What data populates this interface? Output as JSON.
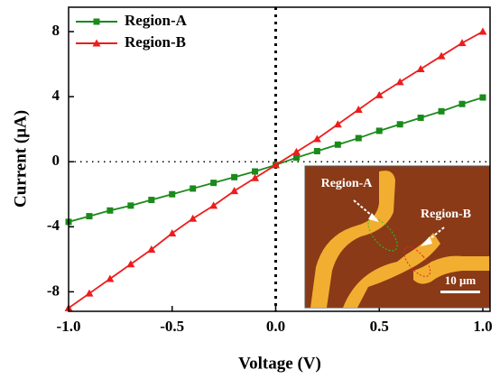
{
  "chart_data": {
    "type": "line",
    "x_label": "Voltage (V)",
    "y_label": "Current (μA)",
    "x": [
      -1.0,
      -0.9,
      -0.8,
      -0.7,
      -0.6,
      -0.5,
      -0.4,
      -0.3,
      -0.2,
      -0.1,
      0.0,
      0.1,
      0.2,
      0.3,
      0.4,
      0.5,
      0.6,
      0.7,
      0.8,
      0.9,
      1.0
    ],
    "series": [
      {
        "name": "Region-A",
        "color": "#1a8a1a",
        "marker": "square",
        "values": [
          -3.7,
          -3.35,
          -3.0,
          -2.7,
          -2.35,
          -2.0,
          -1.65,
          -1.3,
          -0.95,
          -0.6,
          -0.2,
          0.25,
          0.65,
          1.05,
          1.45,
          1.9,
          2.3,
          2.7,
          3.1,
          3.55,
          3.95
        ]
      },
      {
        "name": "Region-B",
        "color": "#ee1c1c",
        "marker": "triangle",
        "values": [
          -9.0,
          -8.1,
          -7.2,
          -6.3,
          -5.4,
          -4.4,
          -3.5,
          -2.7,
          -1.8,
          -1.0,
          -0.2,
          0.6,
          1.4,
          2.3,
          3.2,
          4.1,
          4.9,
          5.7,
          6.5,
          7.3,
          8.0
        ]
      }
    ],
    "xlim": [
      -1.0,
      1.035
    ],
    "ylim": [
      -9.2,
      9.5
    ],
    "xticks": [
      {
        "value": -1.0,
        "label": "-1.0"
      },
      -0.5,
      {
        "value": 0.0,
        "label": "0.0"
      },
      0.5,
      {
        "value": 1.0,
        "label": "1.0"
      }
    ],
    "yticks": [
      -8,
      -4,
      0,
      4,
      8
    ],
    "legend": "upper left",
    "inset_labels": [
      "Region-A",
      "Region-B",
      "10 μm"
    ]
  }
}
